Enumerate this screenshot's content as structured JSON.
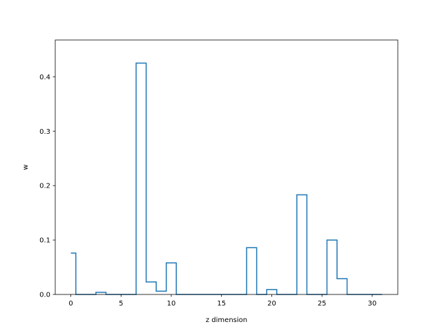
{
  "chart_data": {
    "type": "step",
    "title": "",
    "xlabel": "z dimension",
    "ylabel": "w",
    "xlim": [
      -1.55,
      32.55
    ],
    "ylim": [
      0,
      0.4675
    ],
    "xticks": [
      0,
      5,
      10,
      15,
      20,
      25,
      30
    ],
    "yticks": [
      0.0,
      0.1,
      0.2,
      0.3,
      0.4
    ],
    "ytick_labels": [
      "0.0",
      "0.1",
      "0.2",
      "0.3",
      "0.4"
    ],
    "grid": false,
    "line_color": "#1f77b4",
    "x": [
      0,
      1,
      2,
      3,
      4,
      5,
      6,
      7,
      8,
      9,
      10,
      11,
      12,
      13,
      14,
      15,
      16,
      17,
      18,
      19,
      20,
      21,
      22,
      23,
      24,
      25,
      26,
      27,
      28,
      29,
      30,
      31
    ],
    "values": [
      0.076,
      0,
      0,
      0.004,
      0,
      0,
      0,
      0.425,
      0.023,
      0.006,
      0.058,
      0,
      0,
      0,
      0,
      0,
      0,
      0,
      0.086,
      0,
      0.009,
      0,
      0,
      0.183,
      0,
      0,
      0.1,
      0.029,
      0,
      0,
      0,
      0
    ]
  }
}
